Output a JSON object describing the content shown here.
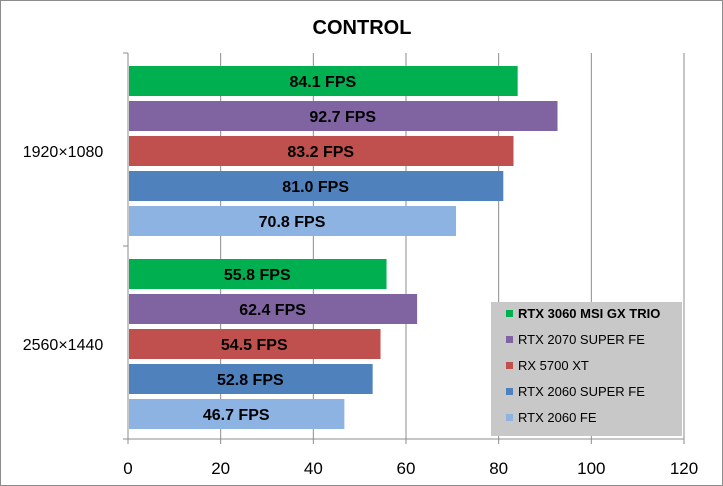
{
  "chart_data": {
    "type": "bar",
    "orientation": "horizontal",
    "title": "CONTROL",
    "xlabel": "",
    "ylabel": "",
    "xlim": [
      0,
      120
    ],
    "x_ticks": [
      0,
      20,
      40,
      60,
      80,
      100,
      120
    ],
    "grid": true,
    "legend_position": "bottom-right",
    "categories": [
      "1920×1080",
      "2560×1440"
    ],
    "value_suffix": " FPS",
    "series": [
      {
        "name": "RTX 3060 MSI GX TRIO",
        "color": "#00b050",
        "bold_legend": true,
        "values": [
          84.1,
          55.8
        ]
      },
      {
        "name": "RTX 2070 SUPER FE",
        "color": "#8064a2",
        "bold_legend": false,
        "values": [
          92.7,
          62.4
        ]
      },
      {
        "name": "RX 5700 XT",
        "color": "#c0504d",
        "bold_legend": false,
        "values": [
          83.2,
          54.5
        ]
      },
      {
        "name": "RTX 2060 SUPER FE",
        "color": "#4f81bd",
        "bold_legend": false,
        "values": [
          81.0,
          52.8
        ]
      },
      {
        "name": "RTX 2060 FE",
        "color": "#8db3e2",
        "bold_legend": false,
        "values": [
          70.8,
          46.7
        ]
      }
    ],
    "legend_background": "#c8c8c8"
  }
}
